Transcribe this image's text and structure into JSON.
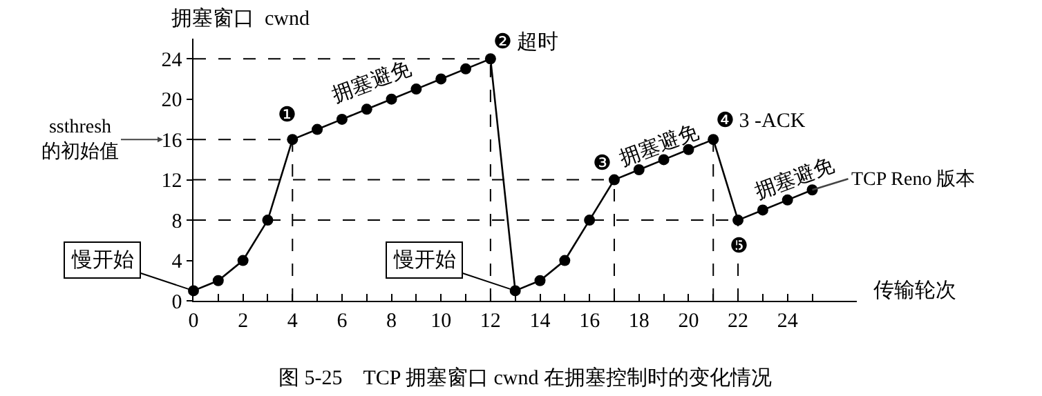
{
  "chart_data": {
    "type": "line",
    "title": "图 5-25    TCP 拥塞窗口 cwnd 在拥塞控制时的变化情况",
    "xlabel": "传输轮次",
    "ylabel": "拥塞窗口  cwnd",
    "x": [
      0,
      1,
      2,
      3,
      4,
      5,
      6,
      7,
      8,
      9,
      10,
      11,
      12,
      13,
      14,
      15,
      16,
      17,
      18,
      19,
      20,
      21,
      22,
      23,
      24,
      25
    ],
    "series": [
      {
        "color": "#000000",
        "values": [
          1,
          2,
          4,
          8,
          16,
          17,
          18,
          19,
          20,
          21,
          22,
          23,
          24,
          1,
          2,
          4,
          8,
          12,
          13,
          14,
          15,
          16,
          8,
          9,
          10,
          11
        ]
      }
    ],
    "xlim": [
      0,
      26.8
    ],
    "ylim": [
      0,
      26
    ],
    "xticks": [
      0,
      {
        "value": 1,
        "label": null
      },
      2,
      {
        "value": 3,
        "label": null
      },
      4,
      {
        "value": 5,
        "label": null
      },
      6,
      {
        "value": 7,
        "label": null
      },
      8,
      {
        "value": 9,
        "label": null
      },
      10,
      {
        "value": 11,
        "label": null
      },
      12,
      {
        "value": 13,
        "label": null
      },
      14,
      {
        "value": 15,
        "label": null
      },
      16,
      {
        "value": 17,
        "label": null
      },
      18,
      {
        "value": 19,
        "label": null
      },
      20,
      {
        "value": 21,
        "label": null
      },
      22,
      {
        "value": 23,
        "label": null
      },
      24,
      {
        "value": 25,
        "label": null
      }
    ],
    "yticks": [
      0,
      4,
      8,
      12,
      16,
      20,
      24
    ],
    "ref_lines": [
      {
        "axis": "y",
        "value": 24
      },
      {
        "axis": "y",
        "value": 16
      },
      {
        "axis": "y",
        "value": 12
      },
      {
        "axis": "y",
        "value": 8
      },
      {
        "axis": "x",
        "value": 4
      },
      {
        "axis": "x",
        "value": 12
      },
      {
        "axis": "x",
        "value": 17
      },
      {
        "axis": "x",
        "value": 21
      },
      {
        "axis": "x",
        "value": 22
      }
    ],
    "annotations": [
      {
        "text": "慢开始",
        "x": 0,
        "y": 1
      },
      {
        "text": "慢开始",
        "x": 13,
        "y": 1
      },
      {
        "text": "ssthresh\n的初始值",
        "x": 0,
        "y": 16
      },
      "❶",
      "拥塞避免",
      "❷ 超时",
      "❸",
      "拥塞避免",
      "❹ 3 -ACK",
      "拥塞避免",
      {
        "text": "TCP Reno 版本",
        "x": 25,
        "y": 11
      },
      "❺"
    ],
    "marker": "circle",
    "line_style": "solid",
    "grid": false
  }
}
